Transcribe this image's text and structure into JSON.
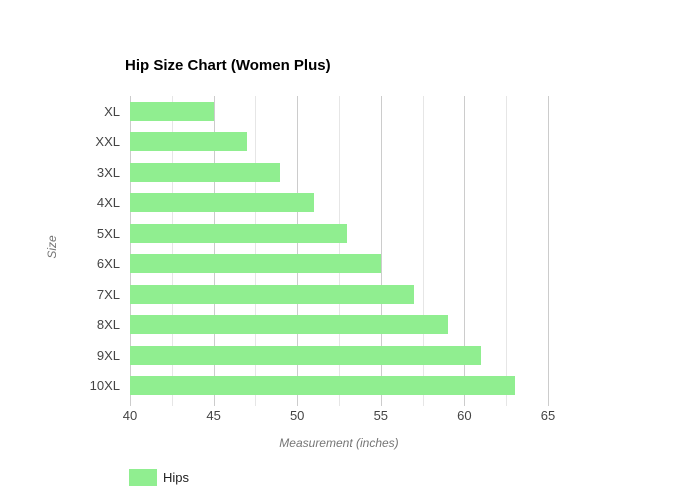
{
  "chart_data": {
    "type": "bar",
    "orientation": "horizontal",
    "title": "Hip Size Chart (Women Plus)",
    "xlabel": "Measurement (inches)",
    "ylabel": "Size",
    "categories": [
      "XL",
      "XXL",
      "3XL",
      "4XL",
      "5XL",
      "6XL",
      "7XL",
      "8XL",
      "9XL",
      "10XL"
    ],
    "series": [
      {
        "name": "Hips",
        "color": "#90EE90",
        "values": [
          45,
          47,
          49,
          51,
          53,
          55,
          57,
          59,
          61,
          63
        ]
      }
    ],
    "xlim": [
      40,
      65
    ],
    "x_major_ticks": [
      40,
      45,
      50,
      55,
      60,
      65
    ],
    "x_minor_step": 2.5,
    "grid": true,
    "legend_position": "bottom-left",
    "colors": {
      "bar": "#90EE90",
      "grid_major": "#cccccc",
      "grid_minor": "#e6e6e6",
      "tick_label": "#444444",
      "axis_title": "#757575",
      "title_text": "#000000",
      "legend_text": "#222222",
      "background": "#ffffff"
    }
  }
}
